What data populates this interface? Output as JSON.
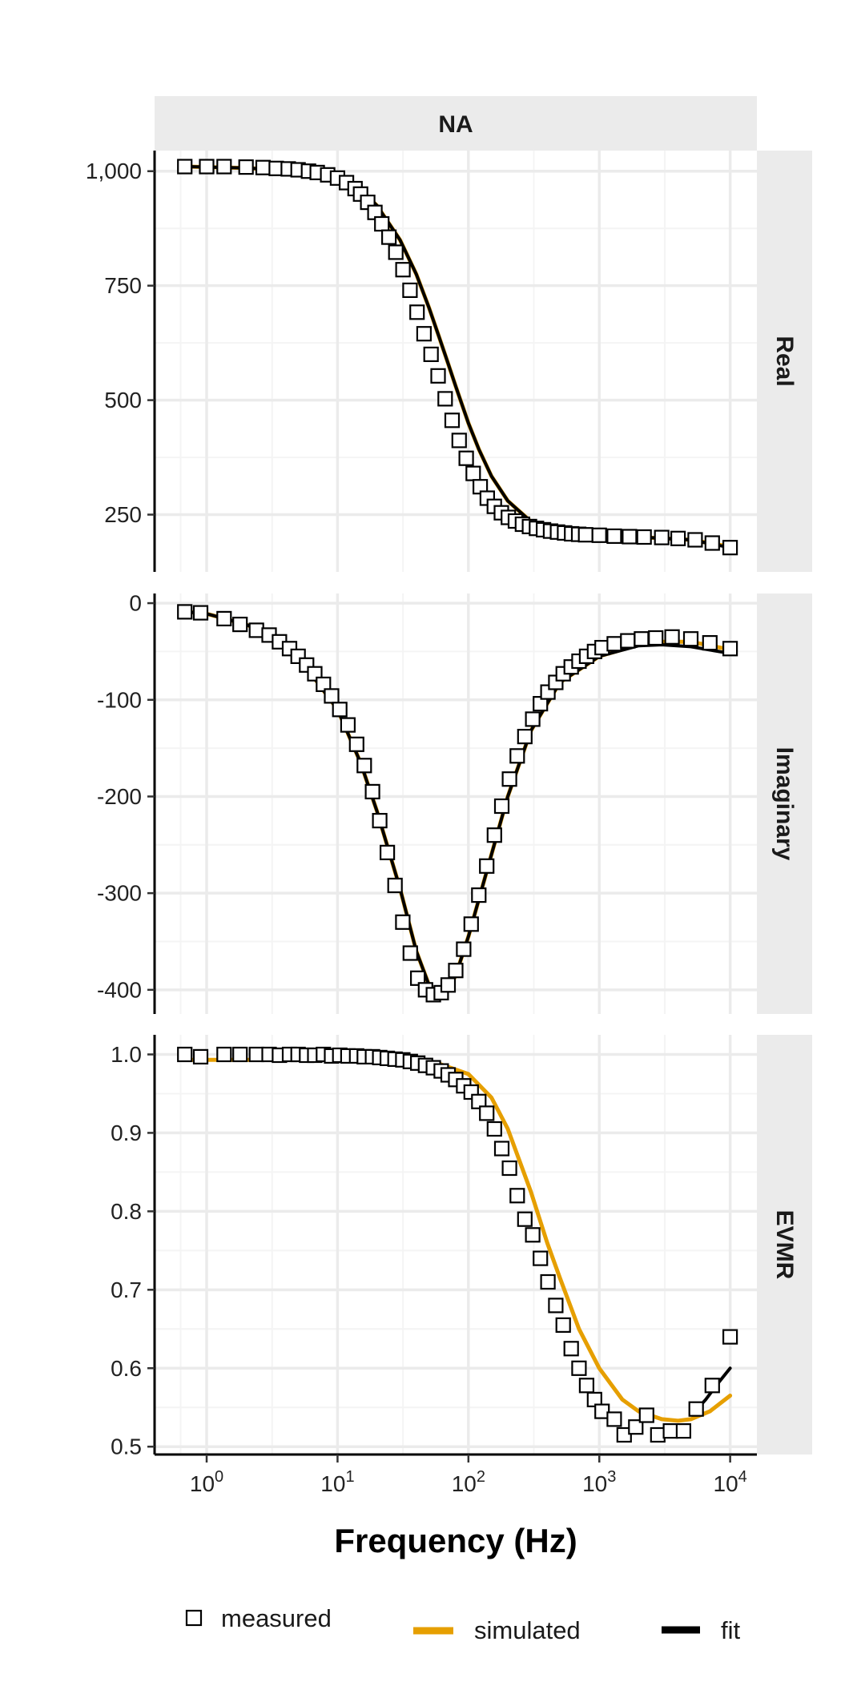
{
  "chart_data": {
    "type": "scatter",
    "facet_column_label": "NA",
    "xlabel": "Frequency (Hz)",
    "x_scale": "log10",
    "xlim": [
      0.4,
      16000
    ],
    "x_ticks": [
      1,
      10,
      100,
      1000,
      10000
    ],
    "x_tick_labels": [
      {
        "base": "10",
        "exp": "0"
      },
      {
        "base": "10",
        "exp": "1"
      },
      {
        "base": "10",
        "exp": "2"
      },
      {
        "base": "10",
        "exp": "3"
      },
      {
        "base": "10",
        "exp": "4"
      }
    ],
    "grid": true,
    "legend_position": "bottom",
    "legend": [
      {
        "label": "measured",
        "kind": "square-marker",
        "color": "#000000"
      },
      {
        "label": "simulated",
        "kind": "line",
        "color": "#E69F00"
      },
      {
        "label": "fit",
        "kind": "line",
        "color": "#000000"
      }
    ],
    "panels": [
      {
        "strip_label": "Real",
        "ylim": [
          125,
          1045
        ],
        "y_ticks": [
          250,
          500,
          750,
          1000
        ],
        "y_tick_labels": [
          "250",
          "500",
          "750",
          "1,000"
        ],
        "series": [
          {
            "name": "measured",
            "x": [
              0.68,
              1.0,
              1.36,
              2.0,
              2.7,
              3.4,
              4.2,
              5.0,
              6.0,
              7.0,
              8.4,
              10.0,
              11.7,
              13.6,
              15.0,
              17.0,
              19.3,
              21.8,
              24.7,
              27.9,
              31.6,
              35.8,
              40.5,
              45.8,
              51.8,
              58.7,
              66.4,
              75.1,
              85.0,
              96.2,
              108.8,
              123.2,
              139.4,
              157.7,
              178.5,
              202.0,
              228.6,
              258.6,
              292.7,
              331.2,
              374.8,
              424.1,
              479.9,
              543.1,
              614.6,
              695.5,
              787.0,
              1000,
              1300,
              1700,
              2200,
              3000,
              4000,
              5400,
              7300,
              10000
            ],
            "values": [
              1010,
              1010,
              1010,
              1009,
              1008,
              1006,
              1005,
              1003,
              1000,
              997,
              992,
              985,
              975,
              962,
              950,
              932,
              910,
              885,
              856,
              823,
              785,
              740,
              692,
              645,
              600,
              553,
              503,
              456,
              412,
              373,
              340,
              311,
              286,
              268,
              254,
              244,
              236,
              229,
              224,
              220,
              217,
              214,
              212,
              210,
              208,
              207,
              206,
              205,
              203,
              202,
              201,
              200,
              198,
              195,
              188,
              178
            ]
          },
          {
            "name": "simulated",
            "x": [
              0.7,
              1,
              2,
              5,
              10,
              15,
              20,
              30,
              40,
              50,
              60,
              70,
              80,
              100,
              120,
              150,
              200,
              300,
              500,
              1000,
              2000,
              5000,
              10000
            ],
            "values": [
              1010,
              1009,
              1007,
              1001,
              986,
              960,
              925,
              850,
              775,
              702,
              636,
              580,
              530,
              450,
              393,
              334,
              280,
              235,
              213,
              205,
              201,
              195,
              180
            ]
          },
          {
            "name": "fit",
            "x": [
              0.7,
              1,
              2,
              5,
              10,
              15,
              20,
              30,
              40,
              50,
              60,
              70,
              80,
              100,
              120,
              150,
              200,
              300,
              500,
              1000,
              2000,
              5000,
              10000
            ],
            "values": [
              1010,
              1009,
              1007,
              1001,
              986,
              960,
              925,
              850,
              775,
              702,
              636,
              580,
              530,
              450,
              393,
              334,
              280,
              235,
              213,
              205,
              201,
              195,
              178
            ]
          }
        ]
      },
      {
        "strip_label": "Imaginary",
        "ylim": [
          -425,
          10
        ],
        "y_ticks": [
          -400,
          -300,
          -200,
          -100,
          0
        ],
        "y_tick_labels": [
          "-400",
          "-300",
          "-200",
          "-100",
          "0"
        ],
        "series": [
          {
            "name": "measured",
            "x": [
              0.68,
              0.9,
              1.36,
              1.8,
              2.4,
              3.0,
              3.6,
              4.3,
              5.0,
              5.8,
              6.7,
              7.8,
              9.0,
              10.4,
              12.0,
              14.0,
              16.0,
              18.5,
              21.0,
              24.0,
              27.5,
              31.5,
              36.0,
              41.0,
              47.0,
              54.0,
              62.0,
              70.0,
              80.0,
              92.0,
              105,
              120,
              138,
              158,
              180,
              206,
              236,
              270,
              310,
              355,
              405,
              465,
              530,
              610,
              700,
              800,
              920,
              1050,
              1300,
              1650,
              2100,
              2700,
              3600,
              5000,
              7000,
              10000
            ],
            "values": [
              -9,
              -10,
              -16,
              -22,
              -28,
              -33,
              -40,
              -47,
              -55,
              -64,
              -73,
              -84,
              -96,
              -110,
              -126,
              -146,
              -168,
              -195,
              -225,
              -258,
              -292,
              -330,
              -362,
              -388,
              -400,
              -405,
              -403,
              -395,
              -380,
              -358,
              -332,
              -302,
              -272,
              -240,
              -210,
              -182,
              -158,
              -138,
              -120,
              -104,
              -92,
              -82,
              -73,
              -66,
              -60,
              -55,
              -50,
              -46,
              -42,
              -39,
              -37,
              -36,
              -35,
              -37,
              -41,
              -47
            ]
          },
          {
            "name": "simulated",
            "x": [
              0.7,
              1,
              2,
              3,
              5,
              10,
              15,
              20,
              30,
              40,
              50,
              60,
              70,
              80,
              100,
              150,
              200,
              300,
              500,
              1000,
              2000,
              3000,
              5000,
              10000
            ],
            "values": [
              -9,
              -11,
              -22,
              -33,
              -55,
              -110,
              -165,
              -215,
              -295,
              -360,
              -395,
              -405,
              -400,
              -385,
              -345,
              -260,
              -200,
              -132,
              -82,
              -55,
              -43,
              -40,
              -40,
              -48
            ]
          },
          {
            "name": "fit",
            "x": [
              0.7,
              1,
              2,
              3,
              5,
              10,
              15,
              20,
              30,
              40,
              50,
              60,
              70,
              80,
              100,
              150,
              200,
              300,
              500,
              1000,
              2000,
              3000,
              5000,
              10000
            ],
            "values": [
              -9,
              -11,
              -22,
              -33,
              -55,
              -110,
              -165,
              -215,
              -295,
              -360,
              -395,
              -405,
              -400,
              -385,
              -345,
              -260,
              -200,
              -132,
              -82,
              -55,
              -44,
              -43,
              -45,
              -52
            ]
          }
        ]
      },
      {
        "strip_label": "EVMR",
        "ylim": [
          0.49,
          1.025
        ],
        "y_ticks": [
          0.5,
          0.6,
          0.7,
          0.8,
          0.9,
          1.0
        ],
        "y_tick_labels": [
          "0.5",
          "0.6",
          "0.7",
          "0.8",
          "0.9",
          "1.0"
        ],
        "series": [
          {
            "name": "measured",
            "x": [
              0.68,
              0.9,
              1.36,
              1.8,
              2.4,
              3.0,
              3.6,
              4.3,
              5.0,
              5.8,
              6.7,
              7.8,
              9.0,
              10.4,
              12.0,
              14.0,
              16.0,
              18.5,
              21.0,
              24.0,
              27.5,
              31.5,
              36.0,
              41.0,
              47.0,
              54.0,
              62.0,
              70.0,
              80.0,
              92.0,
              105,
              120,
              138,
              158,
              180,
              206,
              236,
              270,
              310,
              355,
              405,
              465,
              530,
              610,
              700,
              800,
              920,
              1050,
              1300,
              1550,
              1900,
              2300,
              2800,
              3500,
              4400,
              5500,
              7300,
              10000
            ],
            "values": [
              1.0,
              0.997,
              1.0,
              1.0,
              1.0,
              1.0,
              0.999,
              1.0,
              1.0,
              0.999,
              0.999,
              1.0,
              0.998,
              0.999,
              0.998,
              0.998,
              0.997,
              0.997,
              0.996,
              0.995,
              0.994,
              0.993,
              0.991,
              0.989,
              0.986,
              0.983,
              0.979,
              0.974,
              0.968,
              0.96,
              0.952,
              0.94,
              0.925,
              0.905,
              0.88,
              0.855,
              0.82,
              0.79,
              0.77,
              0.74,
              0.71,
              0.68,
              0.655,
              0.625,
              0.6,
              0.578,
              0.56,
              0.545,
              0.535,
              0.515,
              0.525,
              0.54,
              0.515,
              0.52,
              0.52,
              0.548,
              0.578,
              0.64
            ]
          },
          {
            "name": "simulated",
            "x": [
              0.7,
              1,
              10,
              30,
              60,
              100,
              150,
              200,
              300,
              400,
              500,
              700,
              1000,
              1500,
              2000,
              3000,
              4000,
              5000,
              7000,
              10000
            ],
            "values": [
              0.993,
              0.993,
              0.993,
              0.992,
              0.988,
              0.975,
              0.945,
              0.905,
              0.825,
              0.76,
              0.715,
              0.65,
              0.6,
              0.56,
              0.545,
              0.535,
              0.533,
              0.535,
              0.545,
              0.565
            ]
          },
          {
            "name": "fit",
            "x": [
              5400,
              6500,
              8000,
              10000
            ],
            "values": [
              0.545,
              0.56,
              0.58,
              0.6
            ]
          }
        ]
      }
    ]
  }
}
